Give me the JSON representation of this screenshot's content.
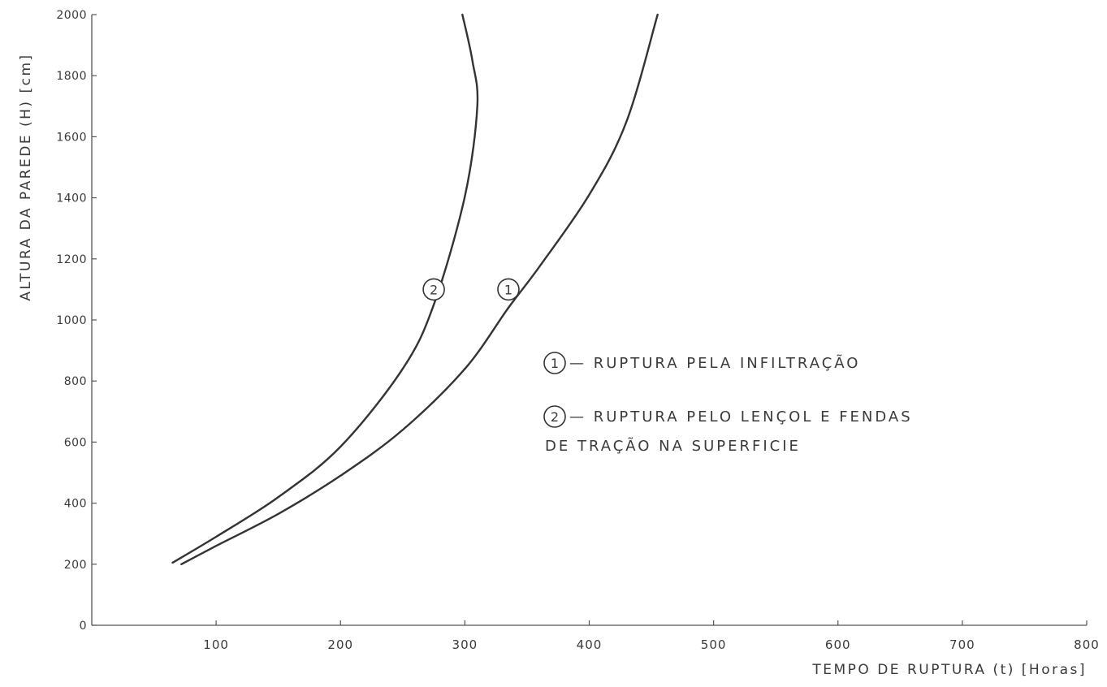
{
  "chart_data": {
    "type": "line",
    "title": "",
    "xlabel": "TEMPO DE RUPTURA (t) [Horas]",
    "ylabel": "ALTURA DA PAREDE (H) [cm]",
    "xlim": [
      0,
      800
    ],
    "ylim": [
      0,
      2000
    ],
    "x_ticks": [
      "100",
      "200",
      "300",
      "400",
      "500",
      "600",
      "700",
      "800"
    ],
    "y_ticks": [
      "0",
      "200",
      "400",
      "600",
      "800",
      "1000",
      "1200",
      "1400",
      "1600",
      "1800",
      "2000"
    ],
    "grid": false,
    "legend_position": "center-right",
    "series": [
      {
        "marker": "1",
        "name_lines": [
          "— RUPTURA   PELA INFILTRAÇÃO"
        ],
        "points": [
          [
            72,
            200
          ],
          [
            100,
            260
          ],
          [
            150,
            365
          ],
          [
            200,
            490
          ],
          [
            250,
            640
          ],
          [
            300,
            840
          ],
          [
            335,
            1040
          ],
          [
            360,
            1175
          ],
          [
            400,
            1410
          ],
          [
            430,
            1650
          ],
          [
            455,
            2000
          ]
        ],
        "label_point": [
          335,
          1100
        ]
      },
      {
        "marker": "2",
        "name_lines": [
          "— RUPTURA   PELO LENÇOL E FENDAS",
          "DE TRAÇÃO NA SUPERFICIE"
        ],
        "points": [
          [
            65,
            205
          ],
          [
            100,
            290
          ],
          [
            150,
            420
          ],
          [
            200,
            585
          ],
          [
            250,
            840
          ],
          [
            275,
            1050
          ],
          [
            300,
            1405
          ],
          [
            310,
            1700
          ],
          [
            306,
            1850
          ],
          [
            298,
            2000
          ]
        ],
        "label_point": [
          275,
          1100
        ]
      }
    ]
  }
}
